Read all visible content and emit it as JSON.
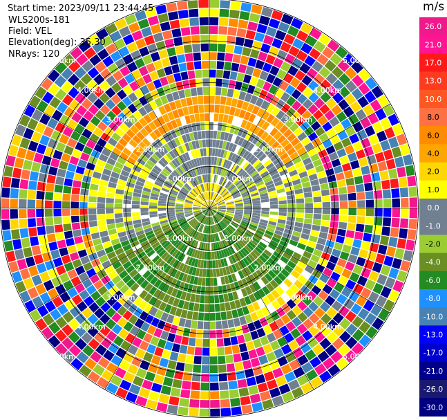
{
  "header": {
    "start_time": "Start time: 2023/09/11 23:44:45",
    "instrument": "WLS200s-181",
    "field": "Field: VEL",
    "elevation": "Elevation(deg): 35.30",
    "nrays": "NRays: 120"
  },
  "colorbar": {
    "unit": "m/s",
    "ticks": [
      "26.0",
      "21.0",
      "17.0",
      "13.0",
      "10.0",
      "8.0",
      "6.0",
      "4.0",
      "2.0",
      "1.0",
      "0.0",
      "-1.0",
      "-2.0",
      "-4.0",
      "-6.0",
      "-8.0",
      "-10.0",
      "-13.0",
      "-17.0",
      "-21.0",
      "-26.0",
      "-30.0"
    ],
    "colors": [
      "#f0198c",
      "#ff1493",
      "#ff1a1a",
      "#ff3b1f",
      "#ff5722",
      "#ff7043",
      "#ff8c00",
      "#ffa500",
      "#ffd700",
      "#ffff00",
      "#708090",
      "#708090",
      "#9acd32",
      "#6b8e23",
      "#228b22",
      "#1e90ff",
      "#4682b4",
      "#0000ff",
      "#0000cd",
      "#00008b",
      "#191970",
      "#000080"
    ]
  },
  "range_rings": {
    "labels": [
      "1.00km",
      "2.00km",
      "3.00km",
      "4.00km",
      "5.00km"
    ]
  },
  "chart_data": {
    "type": "heatmap",
    "projection": "polar (PPI)",
    "field": "VEL",
    "units": "m/s",
    "nrays": 120,
    "elevation_deg": 35.3,
    "range_rings_km": [
      1,
      2,
      3,
      4,
      5
    ],
    "color_scale_range": [
      -30.0,
      26.0
    ],
    "max_range_km": 5.0,
    "sectors": [
      {
        "azimuth_range_deg": [
          300,
          60
        ],
        "range_km": [
          1.0,
          2.8
        ],
        "velocity_ms": 6.0
      },
      {
        "azimuth_range_deg": [
          270,
          90
        ],
        "range_km": [
          0.0,
          1.0
        ],
        "velocity_ms": 2.0
      },
      {
        "azimuth_range_deg": [
          250,
          110
        ],
        "range_km": [
          0.6,
          2.0
        ],
        "velocity_ms": 0.0
      },
      {
        "azimuth_range_deg": [
          110,
          250
        ],
        "range_km": [
          0.0,
          2.8
        ],
        "velocity_ms": -4.0
      },
      {
        "azimuth_range_deg": [
          120,
          160
        ],
        "range_km": [
          2.6,
          3.8
        ],
        "velocity_ms": 2.0
      },
      {
        "azimuth_range_deg": [
          0,
          360
        ],
        "range_km": [
          3.0,
          5.0
        ],
        "velocity_ms": "noise"
      }
    ]
  }
}
